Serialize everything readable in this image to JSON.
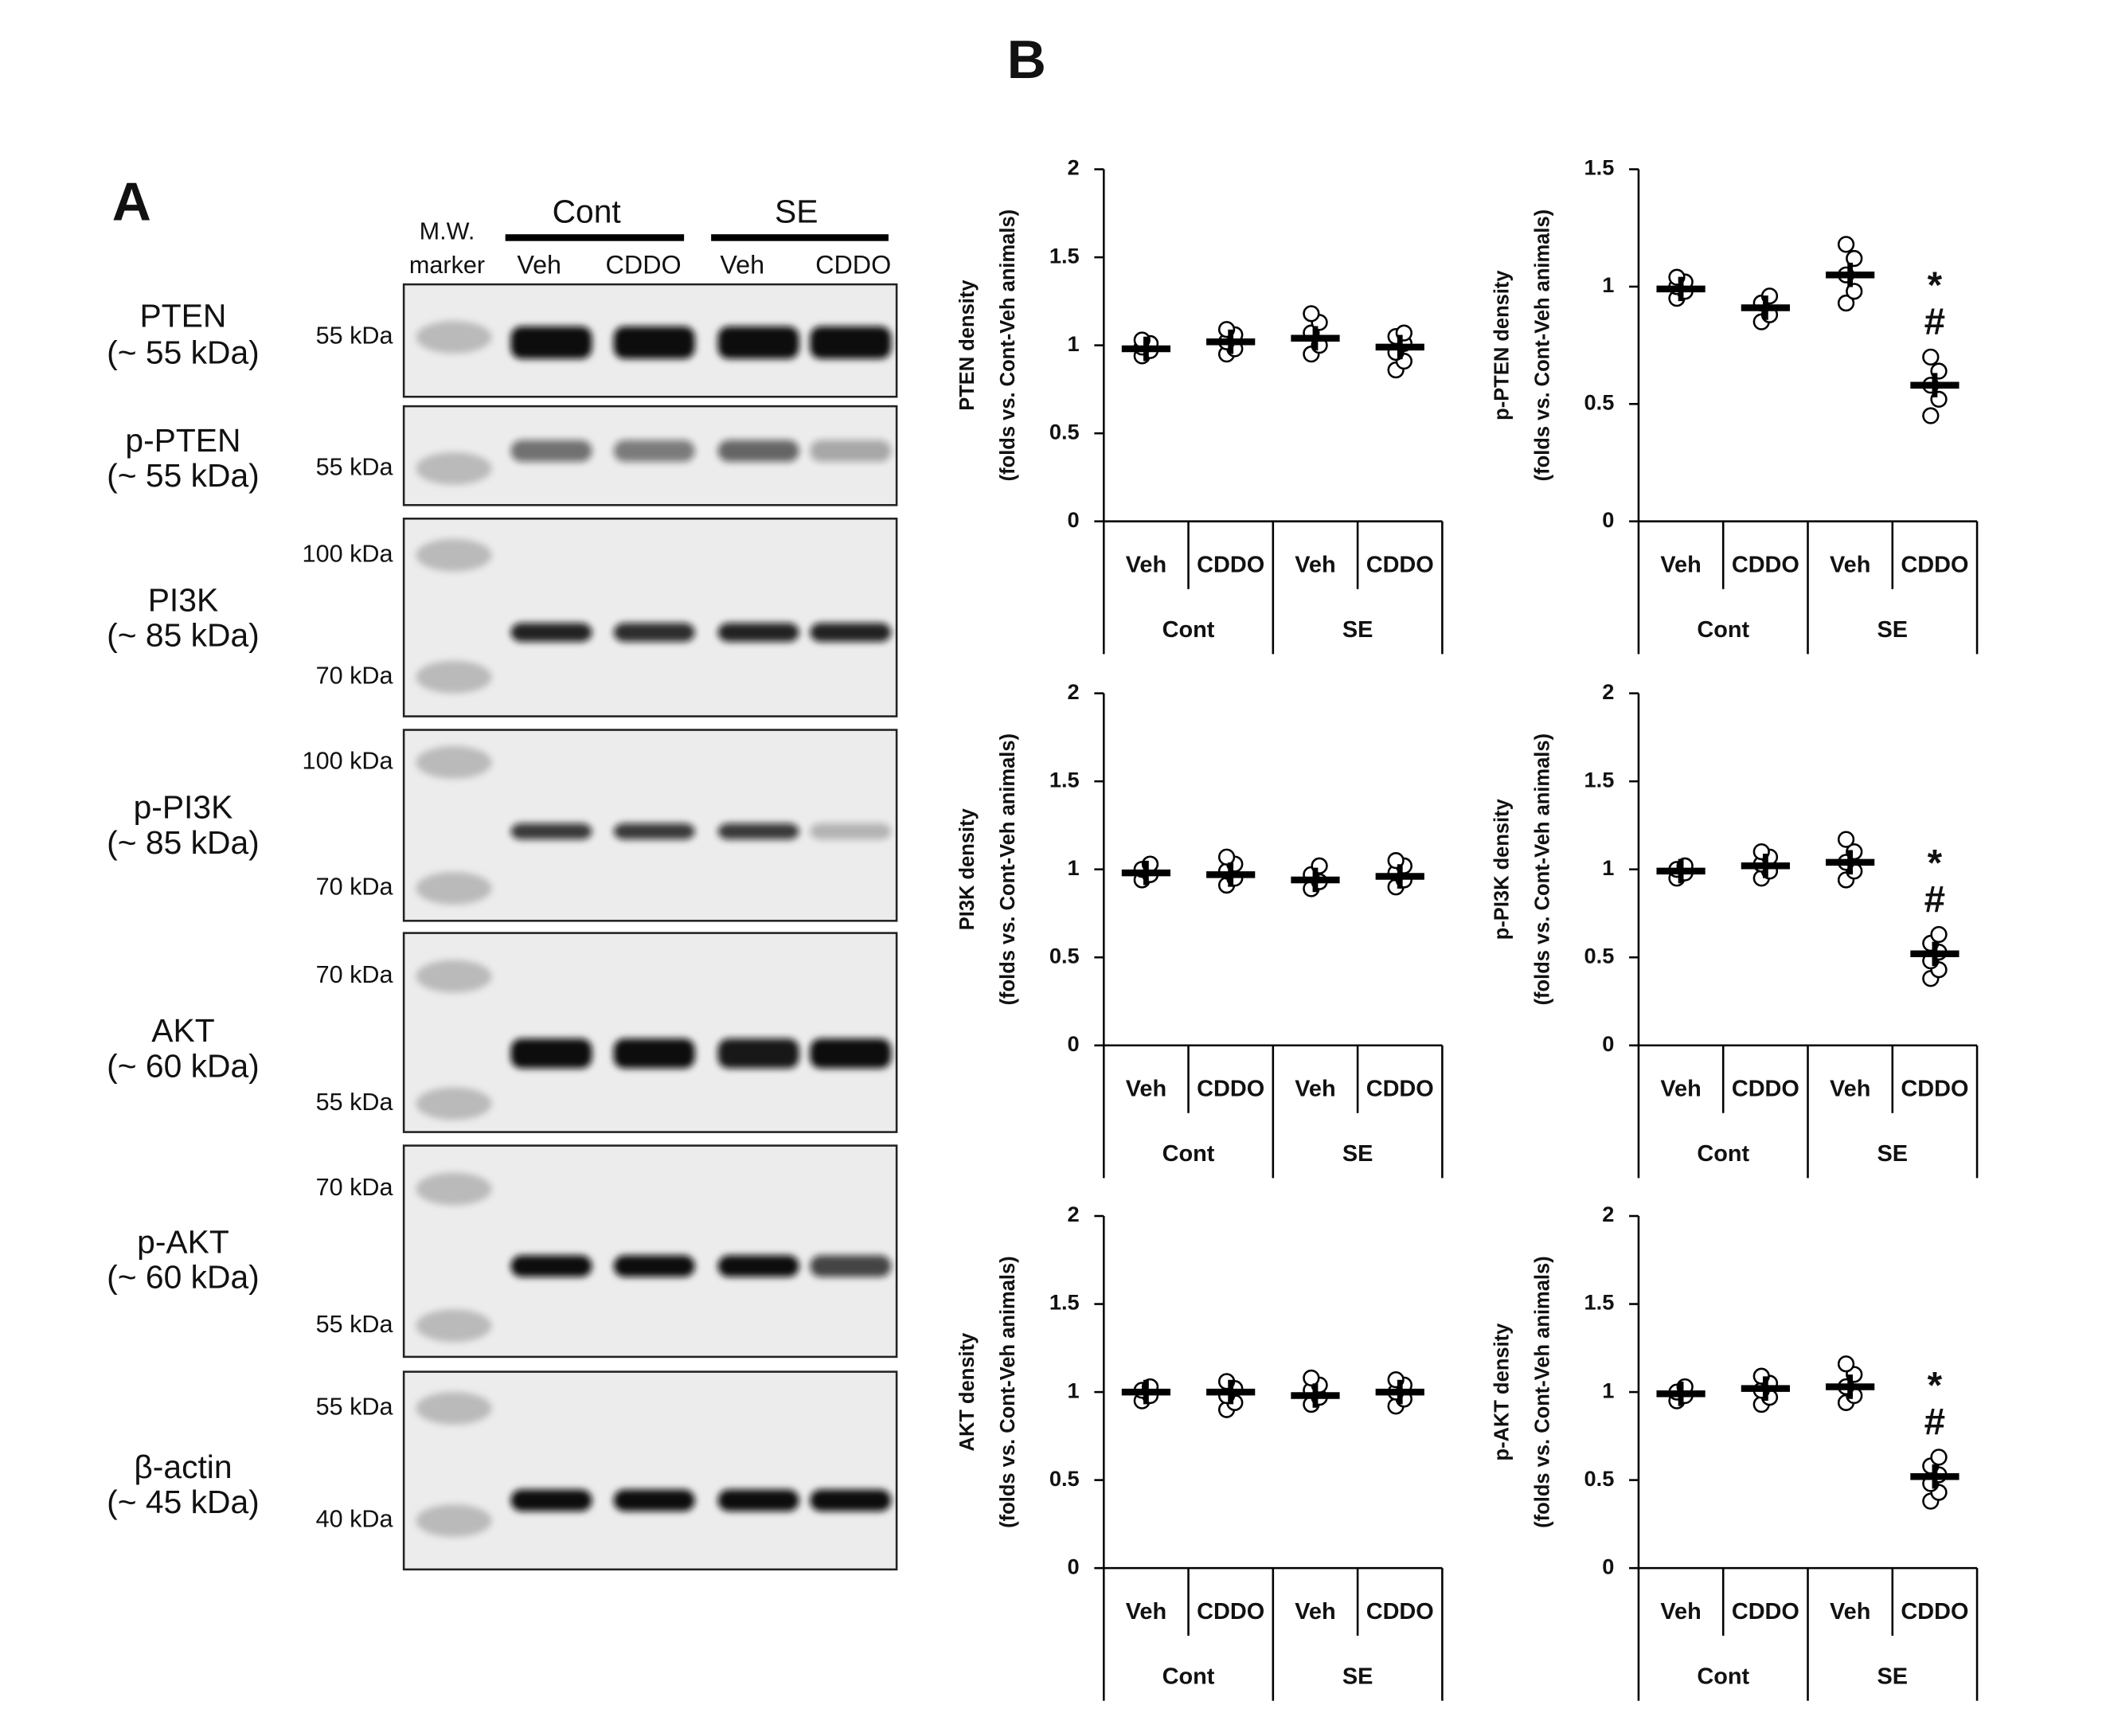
{
  "panel_a": {
    "label": "A",
    "marker_header": [
      "M.W.",
      "marker"
    ],
    "groups": [
      "Cont",
      "SE"
    ],
    "lanes": [
      "Veh",
      "CDDO",
      "Veh",
      "CDDO"
    ],
    "blots": [
      {
        "name": [
          "PTEN",
          "(~ 55 kDa)"
        ],
        "mw": [
          "55 kDa"
        ]
      },
      {
        "name": [
          "p-PTEN",
          "(~ 55 kDa)"
        ],
        "mw": [
          "55 kDa"
        ]
      },
      {
        "name": [
          "PI3K",
          "(~ 85 kDa)"
        ],
        "mw": [
          "100 kDa",
          "70 kDa"
        ]
      },
      {
        "name": [
          "p-PI3K",
          "(~ 85 kDa)"
        ],
        "mw": [
          "100 kDa",
          "70 kDa"
        ]
      },
      {
        "name": [
          "AKT",
          "(~ 60 kDa)"
        ],
        "mw": [
          "70 kDa",
          "55 kDa"
        ]
      },
      {
        "name": [
          "p-AKT",
          "(~ 60 kDa)"
        ],
        "mw": [
          "70 kDa",
          "55 kDa"
        ]
      },
      {
        "name": [
          "β-actin",
          "(~ 45 kDa)"
        ],
        "mw": [
          "55 kDa",
          "40 kDa"
        ]
      }
    ]
  },
  "panel_b": {
    "label": "B"
  },
  "chart_data": [
    {
      "type": "dot",
      "ylabel": [
        "PTEN density",
        "(folds vs. Cont-Veh animals)"
      ],
      "categories": [
        "Veh",
        "CDDO",
        "Veh",
        "CDDO"
      ],
      "groups": [
        "Cont",
        "SE"
      ],
      "ylim": [
        0,
        2
      ],
      "yticks": [
        0,
        0.5,
        1,
        1.5,
        2
      ],
      "means": [
        0.98,
        1.02,
        1.04,
        0.99
      ],
      "points": [
        [
          0.94,
          0.97,
          0.99,
          1.01,
          1.03
        ],
        [
          0.95,
          0.98,
          1.02,
          1.06,
          1.09
        ],
        [
          0.95,
          1.0,
          1.07,
          1.13,
          1.18
        ],
        [
          0.86,
          0.91,
          0.96,
          1.01,
          1.05,
          1.07
        ]
      ]
    },
    {
      "type": "dot",
      "ylabel": [
        "p-PTEN density",
        "(folds vs. Cont-Veh animals)"
      ],
      "categories": [
        "Veh",
        "CDDO",
        "Veh",
        "CDDO"
      ],
      "groups": [
        "Cont",
        "SE"
      ],
      "ylim": [
        0,
        1.5
      ],
      "yticks": [
        0,
        0.5,
        1,
        1.5
      ],
      "means": [
        0.99,
        0.91,
        1.05,
        0.58
      ],
      "points": [
        [
          0.95,
          0.98,
          1.0,
          1.02,
          1.04
        ],
        [
          0.85,
          0.88,
          0.93,
          0.96
        ],
        [
          0.93,
          0.98,
          1.05,
          1.12,
          1.18
        ],
        [
          0.45,
          0.52,
          0.58,
          0.64,
          0.7
        ]
      ],
      "annotations": [
        "*",
        "#"
      ]
    },
    {
      "type": "dot",
      "ylabel": [
        "PI3K density",
        "(folds vs. Cont-Veh animals)"
      ],
      "categories": [
        "Veh",
        "CDDO",
        "Veh",
        "CDDO"
      ],
      "groups": [
        "Cont",
        "SE"
      ],
      "ylim": [
        0,
        2
      ],
      "yticks": [
        0,
        0.5,
        1,
        1.5,
        2
      ],
      "means": [
        0.98,
        0.97,
        0.94,
        0.96
      ],
      "points": [
        [
          0.94,
          0.97,
          1.0,
          1.03
        ],
        [
          0.91,
          0.95,
          0.99,
          1.03,
          1.07
        ],
        [
          0.89,
          0.93,
          0.97,
          1.02
        ],
        [
          0.9,
          0.94,
          0.98,
          1.02,
          1.05
        ]
      ]
    },
    {
      "type": "dot",
      "ylabel": [
        "p-PI3K density",
        "(folds vs. Cont-Veh animals)"
      ],
      "categories": [
        "Veh",
        "CDDO",
        "Veh",
        "CDDO"
      ],
      "groups": [
        "Cont",
        "SE"
      ],
      "ylim": [
        0,
        2
      ],
      "yticks": [
        0,
        0.5,
        1,
        1.5,
        2
      ],
      "means": [
        0.99,
        1.02,
        1.04,
        0.52
      ],
      "points": [
        [
          0.95,
          0.98,
          1.0,
          1.02
        ],
        [
          0.95,
          0.99,
          1.03,
          1.07,
          1.1
        ],
        [
          0.94,
          0.99,
          1.04,
          1.1,
          1.17
        ],
        [
          0.38,
          0.43,
          0.48,
          0.53,
          0.58,
          0.63
        ]
      ],
      "annotations": [
        "*",
        "#"
      ]
    },
    {
      "type": "dot",
      "ylabel": [
        "AKT density",
        "(folds vs. Cont-Veh animals)"
      ],
      "categories": [
        "Veh",
        "CDDO",
        "Veh",
        "CDDO"
      ],
      "groups": [
        "Cont",
        "SE"
      ],
      "ylim": [
        0,
        2
      ],
      "yticks": [
        0,
        0.5,
        1,
        1.5,
        2
      ],
      "means": [
        1.0,
        1.0,
        0.98,
        1.0
      ],
      "points": [
        [
          0.95,
          0.98,
          1.01,
          1.03
        ],
        [
          0.9,
          0.94,
          0.98,
          1.02,
          1.06
        ],
        [
          0.93,
          0.97,
          1.01,
          1.04,
          1.08
        ],
        [
          0.92,
          0.96,
          1.0,
          1.04,
          1.07
        ]
      ]
    },
    {
      "type": "dot",
      "ylabel": [
        "p-AKT density",
        "(folds vs. Cont-Veh animals)"
      ],
      "categories": [
        "Veh",
        "CDDO",
        "Veh",
        "CDDO"
      ],
      "groups": [
        "Cont",
        "SE"
      ],
      "ylim": [
        0,
        2
      ],
      "yticks": [
        0,
        0.5,
        1,
        1.5,
        2
      ],
      "means": [
        0.99,
        1.02,
        1.03,
        0.52
      ],
      "points": [
        [
          0.95,
          0.98,
          1.0,
          1.03
        ],
        [
          0.93,
          0.97,
          1.01,
          1.05,
          1.09
        ],
        [
          0.94,
          0.98,
          1.03,
          1.1,
          1.16
        ],
        [
          0.38,
          0.43,
          0.48,
          0.53,
          0.58,
          0.63
        ]
      ],
      "annotations": [
        "*",
        "#"
      ]
    }
  ]
}
